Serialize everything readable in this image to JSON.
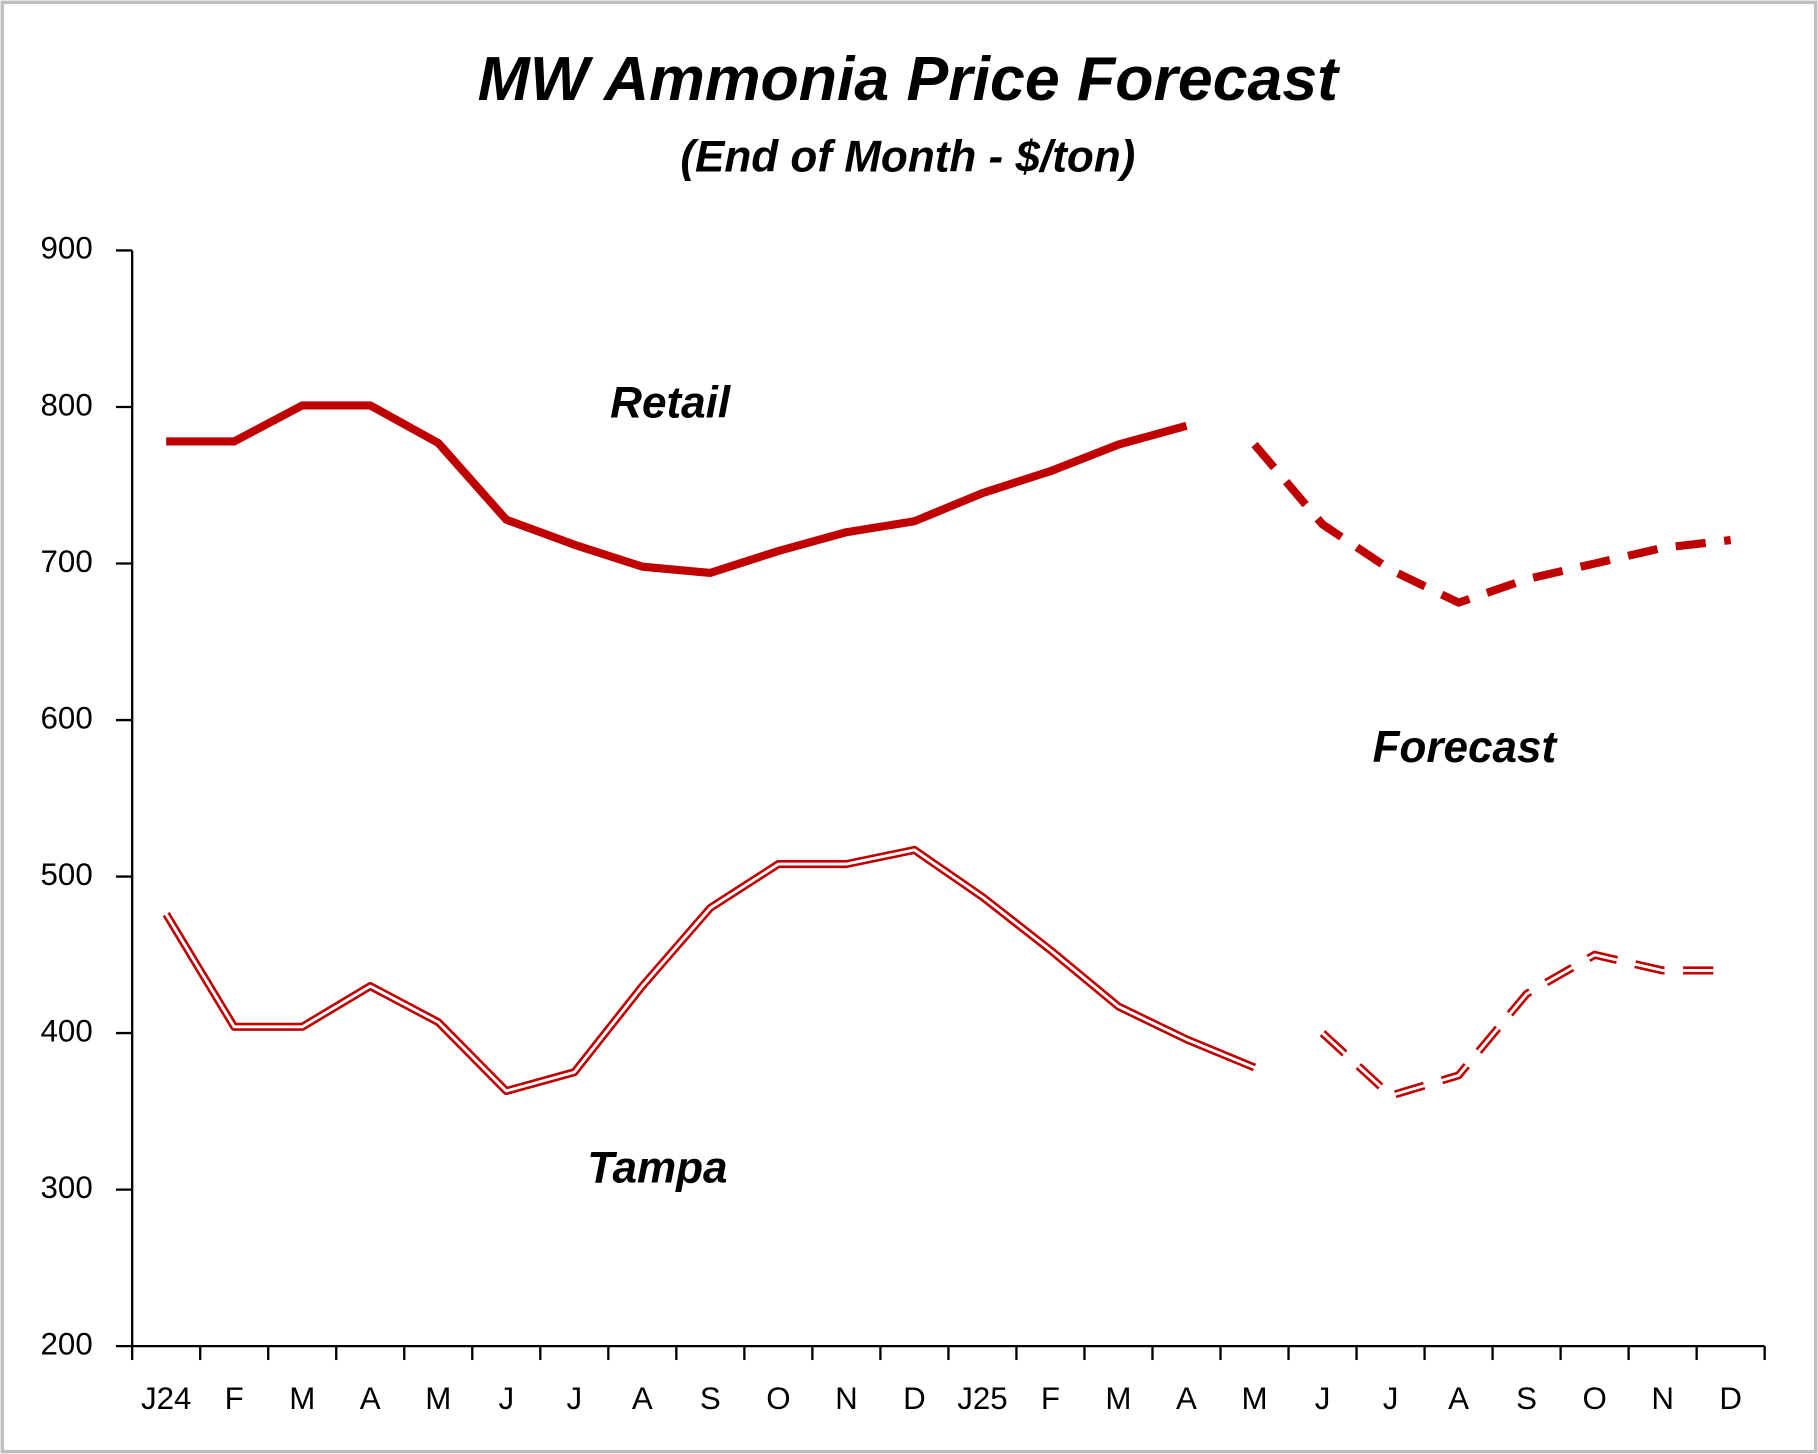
{
  "chart_data": {
    "type": "line",
    "title": "MW Ammonia Price Forecast",
    "subtitle": "(End of Month - $/ton)",
    "annotations": [
      "Retail",
      "Forecast",
      "Tampa"
    ],
    "categories": [
      "J24",
      "F",
      "M",
      "A",
      "M",
      "J",
      "J",
      "A",
      "S",
      "O",
      "N",
      "D",
      "J25",
      "F",
      "M",
      "A",
      "M",
      "J",
      "J",
      "A",
      "S",
      "O",
      "N",
      "D"
    ],
    "series": [
      {
        "color": "#c00000",
        "style": "solid",
        "double": false,
        "values": [
          778,
          778,
          801,
          801,
          777,
          728,
          712,
          698,
          694,
          708,
          720,
          727,
          745,
          759,
          776,
          788,
          null,
          null,
          null,
          null,
          null,
          null,
          null,
          null
        ]
      },
      {
        "color": "#c00000",
        "style": "dashed",
        "double": false,
        "values": [
          null,
          null,
          null,
          null,
          null,
          null,
          null,
          null,
          null,
          null,
          null,
          null,
          null,
          null,
          null,
          null,
          776,
          725,
          696,
          675,
          690,
          700,
          710,
          715
        ]
      },
      {
        "color": "#c00000",
        "style": "solid",
        "double": true,
        "values": [
          476,
          404,
          404,
          430,
          407,
          363,
          375,
          430,
          480,
          508,
          508,
          517,
          487,
          453,
          417,
          396,
          378,
          null,
          null,
          null,
          null,
          null,
          null,
          null
        ]
      },
      {
        "color": "#c00000",
        "style": "dashed",
        "double": true,
        "values": [
          null,
          null,
          null,
          null,
          null,
          null,
          null,
          null,
          null,
          null,
          null,
          null,
          null,
          null,
          null,
          null,
          null,
          400,
          360,
          373,
          425,
          450,
          440,
          440
        ]
      }
    ],
    "ylim": [
      200,
      900
    ],
    "yticks": [
      200,
      300,
      400,
      500,
      600,
      700,
      800,
      900
    ],
    "grid": false
  }
}
